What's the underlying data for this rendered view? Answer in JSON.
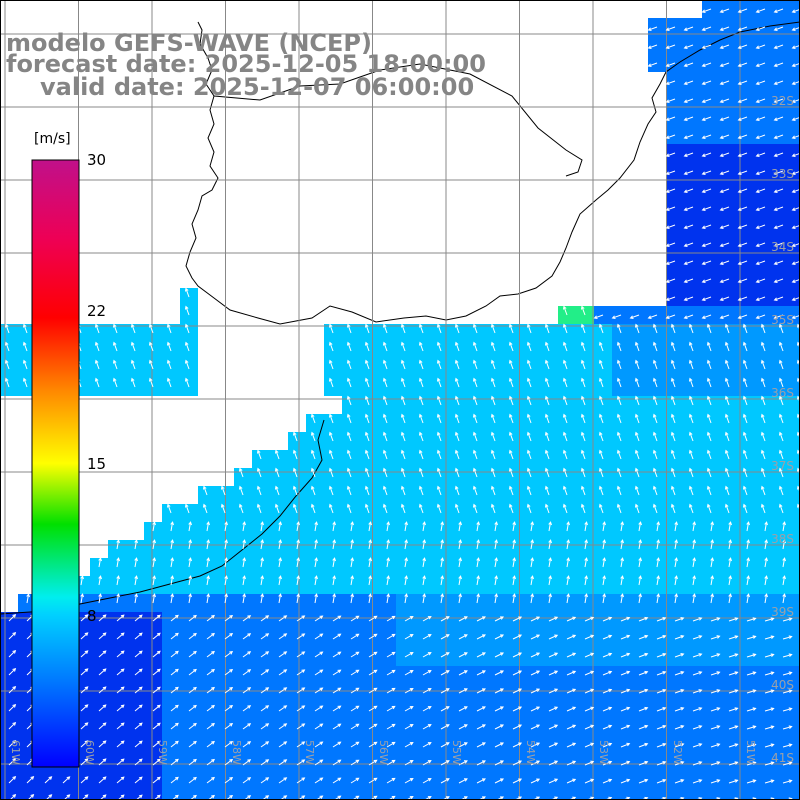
{
  "titles": {
    "model": "modelo GEFS-WAVE (NCEP)",
    "forecast": "forecast date: 2025-12-05 18:00:00",
    "valid": "valid date: 2025-12-07 06:00:00"
  },
  "colorbar": {
    "unit": "[m/s]",
    "ticks": [
      "30",
      "22",
      "15",
      "8"
    ],
    "range": [
      0,
      30
    ]
  },
  "map": {
    "field": "wind speed with direction arrows",
    "region": "Rio de la Plata / southern Brazil / Uruguay coast",
    "lat_labels": [
      "32S",
      "33S",
      "34S",
      "35S",
      "36S",
      "37S",
      "38S",
      "39S",
      "40S",
      "41S"
    ],
    "lon_labels": [
      "61W",
      "60W",
      "59W",
      "58W",
      "57W",
      "56W",
      "55W",
      "54W",
      "53W",
      "52W",
      "51W"
    ],
    "grid": true,
    "ocean_colors": {
      "deep_blue": "#0033ee",
      "blue": "#0077ff",
      "light_blue": "#0099ff",
      "cyan": "#00c8ff",
      "aqua": "#00e6e6",
      "green": "#22ee88"
    },
    "land_color": "#ffffff",
    "coast_color": "#000000",
    "grid_color": "#888888"
  }
}
